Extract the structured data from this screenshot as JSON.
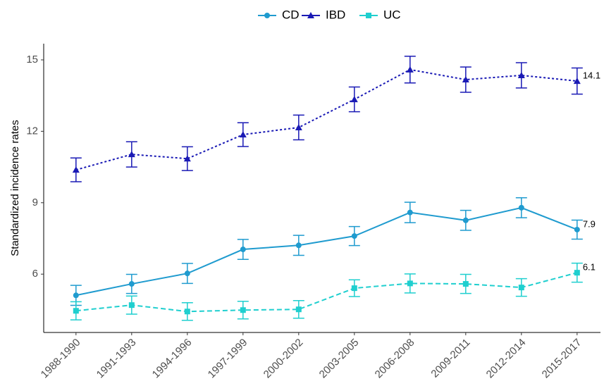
{
  "chart_data": {
    "type": "line",
    "ylabel": "Standardized incidence rates",
    "categories": [
      "1988-1990",
      "1991-1993",
      "1994-1996",
      "1997-1999",
      "2000-2002",
      "2003-2005",
      "2006-2008",
      "2009-2011",
      "2012-2014",
      "2015-2017"
    ],
    "series": [
      {
        "name": "CD",
        "color": "#1f9bcf",
        "dash": "solid",
        "marker": "circle",
        "values": [
          5.11,
          5.59,
          6.03,
          7.04,
          7.21,
          7.6,
          8.59,
          8.26,
          8.79,
          7.87
        ],
        "errors": [
          0.42,
          0.4,
          0.42,
          0.42,
          0.42,
          0.4,
          0.43,
          0.42,
          0.42,
          0.4
        ],
        "value_labels": [
          null,
          null,
          null,
          null,
          null,
          null,
          null,
          null,
          null,
          "7.9"
        ]
      },
      {
        "name": "IBD",
        "color": "#1a1ab5",
        "dash": "dotted",
        "marker": "triangle",
        "values": [
          10.38,
          11.03,
          10.85,
          11.86,
          12.16,
          13.34,
          14.59,
          14.17,
          14.35,
          14.11
        ],
        "errors": [
          0.5,
          0.53,
          0.5,
          0.5,
          0.52,
          0.52,
          0.56,
          0.53,
          0.53,
          0.55
        ],
        "value_labels": [
          null,
          null,
          null,
          null,
          null,
          null,
          null,
          null,
          null,
          "14.1"
        ]
      },
      {
        "name": "UC",
        "color": "#1fcfcf",
        "dash": "dashed",
        "marker": "square",
        "values": [
          4.46,
          4.7,
          4.43,
          4.49,
          4.52,
          5.41,
          5.61,
          5.59,
          5.44,
          6.06
        ],
        "errors": [
          0.38,
          0.38,
          0.37,
          0.37,
          0.37,
          0.35,
          0.4,
          0.4,
          0.37,
          0.4
        ],
        "value_labels": [
          null,
          null,
          null,
          null,
          null,
          null,
          null,
          null,
          null,
          "6.1"
        ]
      }
    ],
    "ylim": [
      3.55,
      15.68
    ],
    "yticks": [
      6,
      9,
      12,
      15
    ],
    "grid": false,
    "legend": "top"
  }
}
